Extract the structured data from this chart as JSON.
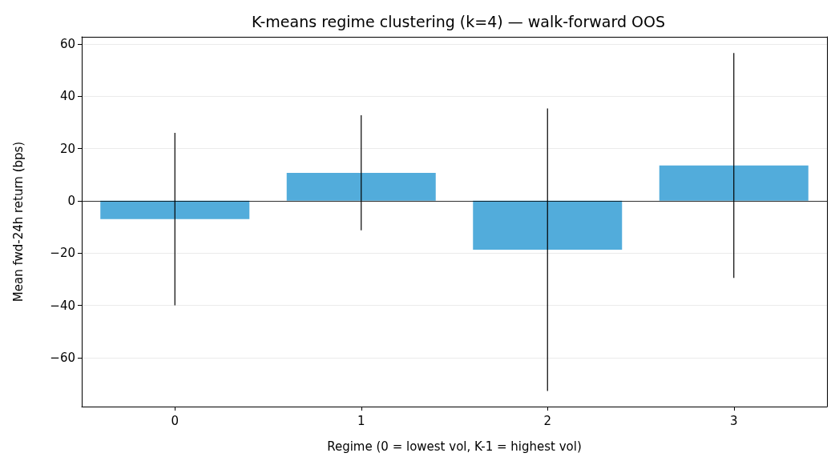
{
  "chart_data": {
    "type": "bar",
    "title": "K-means regime clustering (k=4) — walk-forward OOS",
    "xlabel": "Regime (0 = lowest vol, K-1 = highest vol)",
    "ylabel": "Mean fwd-24h return (bps)",
    "categories": [
      "0",
      "1",
      "2",
      "3"
    ],
    "values": [
      -7.0,
      10.7,
      -18.7,
      13.5
    ],
    "color": "#52acdb",
    "errors": [
      33,
      22,
      54,
      43
    ],
    "ylim": [
      -78.7,
      62.7
    ],
    "yticks": [
      -60,
      -40,
      -20,
      0,
      20,
      40,
      60
    ],
    "grid": "y",
    "ref_lines": [
      {
        "axis": "y",
        "value": 0,
        "color": "#000000"
      }
    ]
  }
}
